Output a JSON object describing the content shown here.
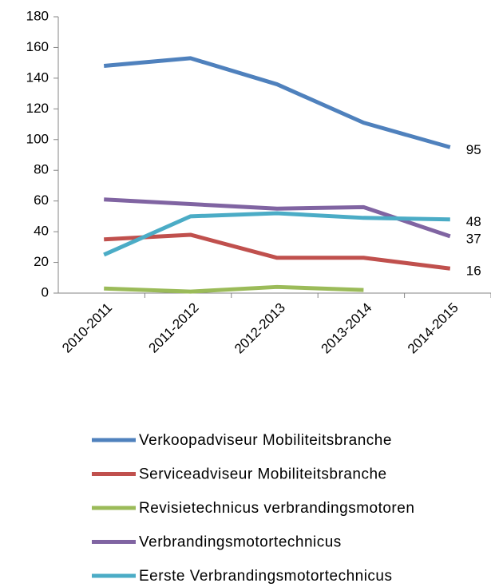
{
  "chart_data": {
    "type": "line",
    "categories": [
      "2010-2011",
      "2011-2012",
      "2012-2013",
      "2013-2014",
      "2014-2015"
    ],
    "series": [
      {
        "name": "Verkoopadviseur Mobiliteitsbranche",
        "color": "#4f81bd",
        "values": [
          148,
          153,
          136,
          111,
          95
        ]
      },
      {
        "name": "Serviceadviseur Mobiliteitsbranche",
        "color": "#c0504d",
        "values": [
          35,
          38,
          23,
          23,
          16
        ]
      },
      {
        "name": "Revisietechnicus verbrandingsmotoren",
        "color": "#9bbb59",
        "values": [
          3,
          1,
          4,
          2,
          null
        ]
      },
      {
        "name": "Verbrandingsmotortechnicus",
        "color": "#8064a2",
        "values": [
          61,
          58,
          55,
          56,
          37
        ]
      },
      {
        "name": "Eerste Verbrandingsmotortechnicus",
        "color": "#4bacc6",
        "values": [
          25,
          50,
          52,
          49,
          48
        ]
      }
    ],
    "ylim": [
      0,
      180
    ],
    "yticks": [
      0,
      20,
      40,
      60,
      80,
      100,
      120,
      140,
      160,
      180
    ],
    "grid": false,
    "data_labels": "last",
    "legend": "bottom"
  }
}
